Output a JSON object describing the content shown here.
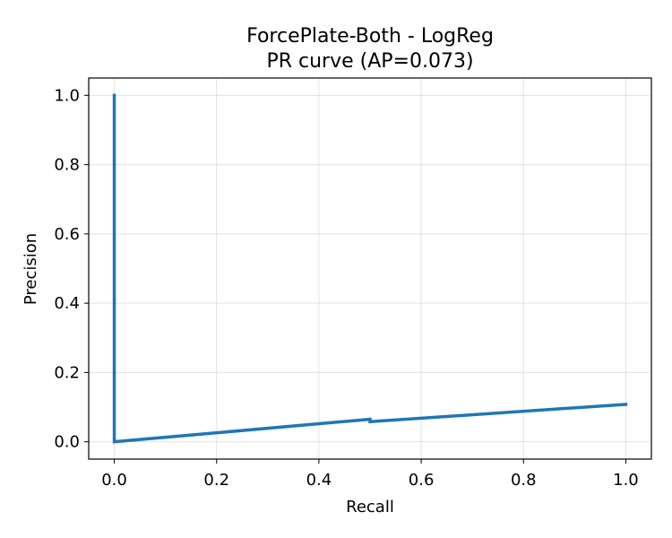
{
  "chart_data": {
    "type": "line",
    "title": "ForcePlate-Both - LogReg",
    "subtitle": "PR curve (AP=0.073)",
    "xlabel": "Recall",
    "ylabel": "Precision",
    "xlim": [
      -0.05,
      1.05
    ],
    "ylim": [
      -0.05,
      1.05
    ],
    "x_ticks": [
      "0.0",
      "0.2",
      "0.4",
      "0.6",
      "0.8",
      "1.0"
    ],
    "y_ticks": [
      "0.0",
      "0.2",
      "0.4",
      "0.6",
      "0.8",
      "1.0"
    ],
    "grid": true,
    "series": [
      {
        "color": "#1f77b4",
        "x": [
          0.0,
          0.0,
          0.0,
          0.5,
          0.5,
          1.0
        ],
        "y": [
          1.0,
          0.0,
          0.0,
          0.065,
          0.058,
          0.108
        ]
      }
    ]
  }
}
